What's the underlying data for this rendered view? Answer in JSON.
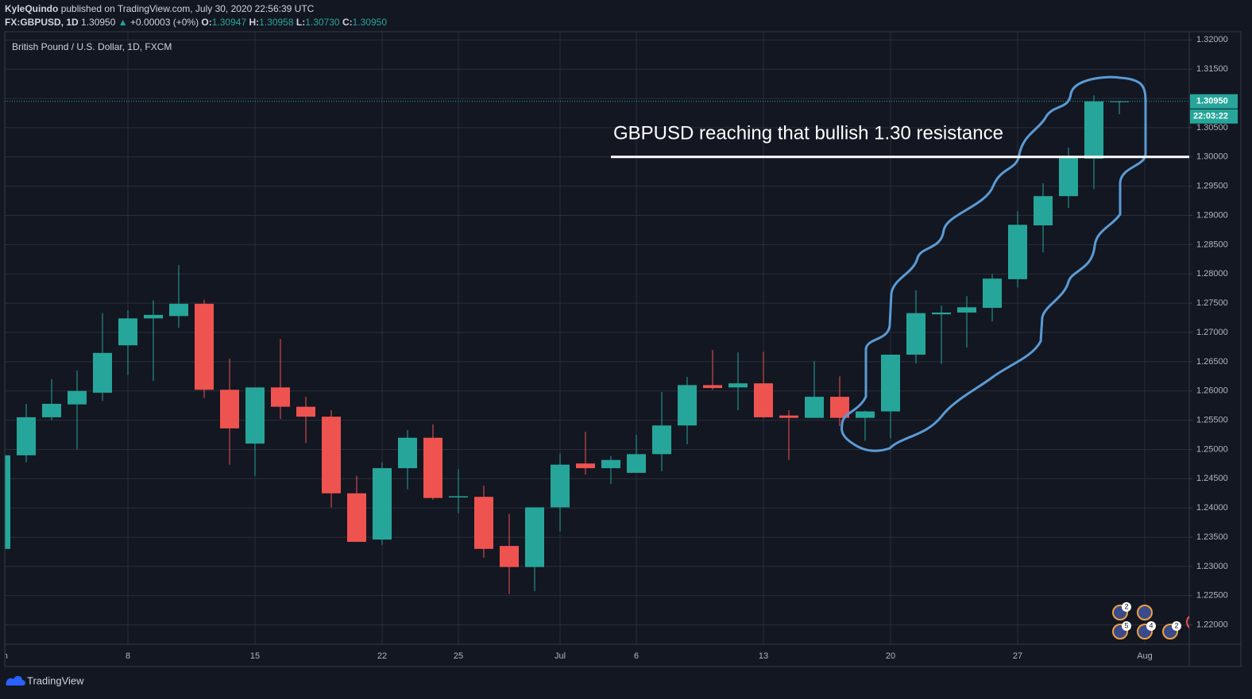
{
  "header": {
    "author": "KyleQuindo",
    "published": "published on TradingView.com, July 30, 2020 22:56:39 UTC",
    "symbol": "FX:GBPUSD, 1D",
    "last": "1.30950",
    "arrow": "▲",
    "change": "+0.00003 (+0%)",
    "o_label": "O:",
    "open": "1.30947",
    "h_label": "H:",
    "high": "1.30958",
    "l_label": "L:",
    "low": "1.30730",
    "c_label": "C:",
    "close": "1.30950"
  },
  "chart_data": {
    "type": "candlestick",
    "title": "British Pound / U.S. Dollar, 1D, FXCM",
    "open": [
      1.233,
      1.249,
      1.2555,
      1.2577,
      1.2597,
      1.2678,
      1.2724,
      1.2728,
      1.2749,
      1.2602,
      1.251,
      1.2606,
      1.2573,
      1.2556,
      1.2425,
      1.2346,
      1.2468,
      1.252,
      1.2418,
      1.2419,
      1.2335,
      1.2299,
      1.2401,
      1.2476,
      1.2468,
      1.246,
      1.2492,
      1.2541,
      1.261,
      1.2606,
      1.2613,
      1.2558,
      1.2554,
      1.259,
      1.2554,
      1.2565,
      1.2662,
      1.2731,
      1.2734,
      1.2742,
      1.2791,
      1.2883,
      1.2933,
      1.2997,
      1.30947
    ],
    "high": [
      1.25,
      1.2578,
      1.262,
      1.2635,
      1.2733,
      1.2738,
      1.2755,
      1.2815,
      1.2756,
      1.2655,
      1.2606,
      1.2689,
      1.259,
      1.2567,
      1.2455,
      1.2478,
      1.2533,
      1.2543,
      1.2466,
      1.2438,
      1.239,
      1.2401,
      1.2493,
      1.253,
      1.2489,
      1.2525,
      1.2598,
      1.2624,
      1.267,
      1.2666,
      1.2667,
      1.2567,
      1.2651,
      1.2625,
      1.2566,
      1.2662,
      1.2772,
      1.2746,
      1.2762,
      1.28,
      1.2907,
      1.2955,
      1.3016,
      1.3105,
      1.30958
    ],
    "low": [
      1.232,
      1.2478,
      1.255,
      1.25,
      1.2583,
      1.2627,
      1.2617,
      1.2708,
      1.2588,
      1.2474,
      1.2455,
      1.2552,
      1.2511,
      1.2401,
      1.2342,
      1.2337,
      1.2432,
      1.2414,
      1.2391,
      1.2315,
      1.2253,
      1.2258,
      1.236,
      1.2457,
      1.2441,
      1.246,
      1.2463,
      1.2509,
      1.2602,
      1.2567,
      1.2554,
      1.2482,
      1.2554,
      1.254,
      1.2515,
      1.2519,
      1.2647,
      1.2646,
      1.2674,
      1.2719,
      1.2777,
      1.2837,
      1.2913,
      1.2945,
      1.3073
    ],
    "close": [
      1.249,
      1.2555,
      1.2578,
      1.26,
      1.2665,
      1.2724,
      1.273,
      1.2749,
      1.2602,
      1.2536,
      1.2606,
      1.2573,
      1.2556,
      1.2425,
      1.2342,
      1.2468,
      1.252,
      1.2417,
      1.242,
      1.233,
      1.2299,
      1.2401,
      1.2474,
      1.2468,
      1.2482,
      1.2492,
      1.2541,
      1.261,
      1.2605,
      1.2613,
      1.2555,
      1.2554,
      1.259,
      1.2554,
      1.2565,
      1.2662,
      1.2733,
      1.2734,
      1.2743,
      1.2792,
      1.2884,
      1.2933,
      1.2999,
      1.3095,
      1.3095
    ],
    "up_color": "#26a69a",
    "down_color": "#ef5350",
    "ylim": [
      1.2167,
      1.3214
    ],
    "yticks": [
      {
        "value": 1.22,
        "label": "1.22000"
      },
      {
        "value": 1.225,
        "label": "1.22500"
      },
      {
        "value": 1.23,
        "label": "1.23000"
      },
      {
        "value": 1.235,
        "label": "1.23500"
      },
      {
        "value": 1.24,
        "label": "1.24000"
      },
      {
        "value": 1.245,
        "label": "1.24500"
      },
      {
        "value": 1.25,
        "label": "1.25000"
      },
      {
        "value": 1.255,
        "label": "1.25500"
      },
      {
        "value": 1.26,
        "label": "1.26000"
      },
      {
        "value": 1.265,
        "label": "1.26500"
      },
      {
        "value": 1.27,
        "label": "1.27000"
      },
      {
        "value": 1.275,
        "label": "1.27500"
      },
      {
        "value": 1.28,
        "label": "1.28000"
      },
      {
        "value": 1.285,
        "label": "1.28500"
      },
      {
        "value": 1.29,
        "label": "1.29000"
      },
      {
        "value": 1.295,
        "label": "1.29500"
      },
      {
        "value": 1.3,
        "label": "1.30000"
      },
      {
        "value": 1.305,
        "label": "1.30500"
      },
      {
        "value": 1.31,
        "label": "1.31000"
      },
      {
        "value": 1.315,
        "label": "1.31500"
      },
      {
        "value": 1.32,
        "label": "1.32000"
      }
    ],
    "xticks": [
      {
        "value": 0,
        "label": "Jun"
      },
      {
        "value": 5,
        "label": "8"
      },
      {
        "value": 10,
        "label": "15"
      },
      {
        "value": 15,
        "label": "22"
      },
      {
        "value": 18,
        "label": "25"
      },
      {
        "value": 22,
        "label": "Jul"
      },
      {
        "value": 25,
        "label": "6"
      },
      {
        "value": 30,
        "label": "13"
      },
      {
        "value": 35,
        "label": "20"
      },
      {
        "value": 40,
        "label": "27"
      },
      {
        "value": 45,
        "label": "Aug"
      }
    ],
    "grid": true,
    "last_price_label": "1.30950",
    "countdown": "22:03:22",
    "annotation": {
      "text": "GBPUSD reaching that bullish 1.30 resistance",
      "level": 1.3
    },
    "event_badges": [
      "2",
      "5",
      "4",
      "2"
    ]
  },
  "footer": {
    "brand": "TradingView"
  }
}
